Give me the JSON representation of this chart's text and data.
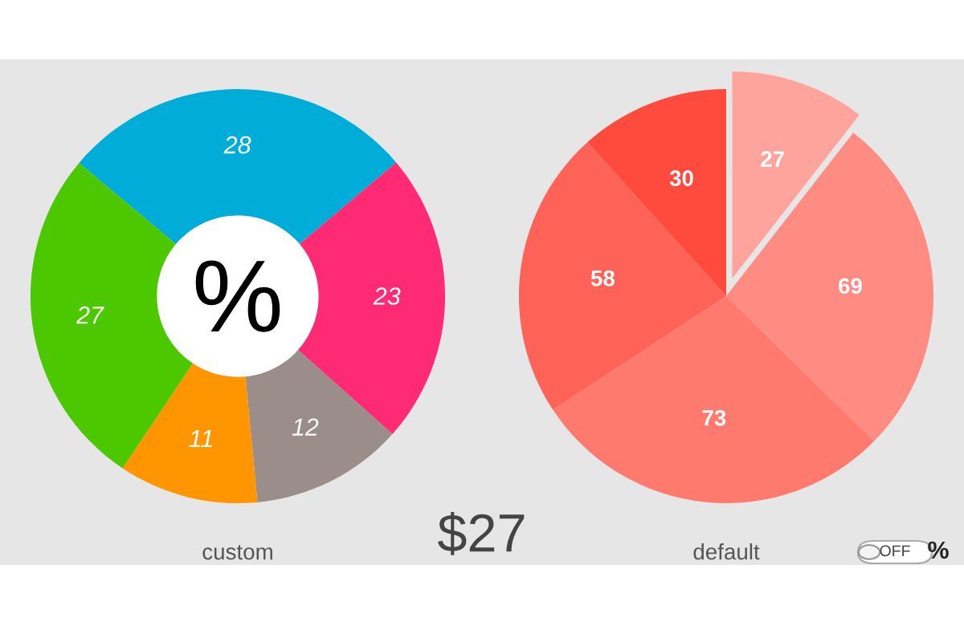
{
  "chart_data": [
    {
      "type": "donut",
      "xlabel": "custom",
      "categories": [
        null,
        null,
        null,
        null,
        null
      ],
      "values": [
        28,
        23,
        12,
        11,
        27
      ],
      "colors": [
        "#00acd8",
        "#ff2a74",
        "#9b8e8a",
        "#ff9500",
        "#4cc800"
      ],
      "data_labels": true,
      "annotations": [
        "%"
      ]
    },
    {
      "type": "pie",
      "xlabel": "default",
      "categories": [
        null,
        null,
        null,
        null,
        null
      ],
      "values": [
        27,
        69,
        73,
        58,
        30
      ],
      "colors": [
        "#ffa49c",
        "#ff8c82",
        "#ff7a6e",
        "#ff6357",
        "#ff4a3e"
      ],
      "data_labels": true,
      "annotations": [
        "$27",
        "OFF",
        "%"
      ]
    }
  ]
}
